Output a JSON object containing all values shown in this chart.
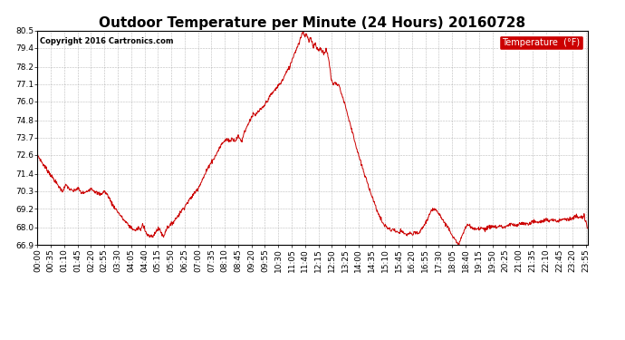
{
  "title": "Outdoor Temperature per Minute (24 Hours) 20160728",
  "copyright_text": "Copyright 2016 Cartronics.com",
  "legend_label": "Temperature  (°F)",
  "line_color": "#cc0000",
  "background_color": "#ffffff",
  "grid_color": "#aaaaaa",
  "ylim": [
    66.9,
    80.5
  ],
  "yticks": [
    66.9,
    68.0,
    69.2,
    70.3,
    71.4,
    72.6,
    73.7,
    74.8,
    76.0,
    77.1,
    78.2,
    79.4,
    80.5
  ],
  "num_minutes": 1440,
  "x_tick_interval": 35,
  "title_fontsize": 11,
  "axis_fontsize": 6.5,
  "legend_bg": "#cc0000",
  "legend_text_color": "#ffffff",
  "waypoints": [
    [
      0,
      72.6
    ],
    [
      15,
      72.0
    ],
    [
      30,
      71.5
    ],
    [
      50,
      70.8
    ],
    [
      65,
      70.3
    ],
    [
      75,
      70.7
    ],
    [
      85,
      70.4
    ],
    [
      95,
      70.3
    ],
    [
      105,
      70.5
    ],
    [
      115,
      70.2
    ],
    [
      125,
      70.2
    ],
    [
      140,
      70.5
    ],
    [
      155,
      70.2
    ],
    [
      165,
      70.1
    ],
    [
      175,
      70.3
    ],
    [
      185,
      70.0
    ],
    [
      195,
      69.5
    ],
    [
      210,
      69.0
    ],
    [
      225,
      68.5
    ],
    [
      240,
      68.1
    ],
    [
      255,
      67.8
    ],
    [
      265,
      68.0
    ],
    [
      270,
      67.8
    ],
    [
      275,
      68.2
    ],
    [
      280,
      68.0
    ],
    [
      285,
      67.6
    ],
    [
      295,
      67.4
    ],
    [
      305,
      67.5
    ],
    [
      310,
      67.8
    ],
    [
      320,
      67.9
    ],
    [
      325,
      67.6
    ],
    [
      330,
      67.4
    ],
    [
      335,
      67.8
    ],
    [
      340,
      68.0
    ],
    [
      350,
      68.2
    ],
    [
      360,
      68.5
    ],
    [
      375,
      69.0
    ],
    [
      390,
      69.5
    ],
    [
      405,
      70.0
    ],
    [
      420,
      70.5
    ],
    [
      435,
      71.2
    ],
    [
      450,
      72.0
    ],
    [
      465,
      72.5
    ],
    [
      475,
      73.0
    ],
    [
      485,
      73.4
    ],
    [
      495,
      73.6
    ],
    [
      505,
      73.5
    ],
    [
      510,
      73.7
    ],
    [
      515,
      73.5
    ],
    [
      520,
      73.6
    ],
    [
      525,
      73.8
    ],
    [
      530,
      73.6
    ],
    [
      535,
      73.5
    ],
    [
      540,
      74.0
    ],
    [
      550,
      74.5
    ],
    [
      555,
      74.8
    ],
    [
      560,
      75.0
    ],
    [
      565,
      75.2
    ],
    [
      570,
      75.1
    ],
    [
      575,
      75.3
    ],
    [
      580,
      75.4
    ],
    [
      590,
      75.6
    ],
    [
      600,
      76.0
    ],
    [
      610,
      76.4
    ],
    [
      620,
      76.7
    ],
    [
      630,
      77.0
    ],
    [
      640,
      77.3
    ],
    [
      650,
      77.8
    ],
    [
      660,
      78.2
    ],
    [
      668,
      78.8
    ],
    [
      675,
      79.2
    ],
    [
      682,
      79.6
    ],
    [
      688,
      80.0
    ],
    [
      692,
      80.3
    ],
    [
      695,
      80.5
    ],
    [
      697,
      80.3
    ],
    [
      700,
      80.1
    ],
    [
      703,
      80.3
    ],
    [
      706,
      80.1
    ],
    [
      710,
      79.8
    ],
    [
      715,
      80.0
    ],
    [
      718,
      79.8
    ],
    [
      722,
      79.5
    ],
    [
      726,
      79.7
    ],
    [
      730,
      79.5
    ],
    [
      735,
      79.2
    ],
    [
      740,
      79.4
    ],
    [
      745,
      79.2
    ],
    [
      750,
      79.0
    ],
    [
      755,
      79.3
    ],
    [
      758,
      79.1
    ],
    [
      763,
      78.5
    ],
    [
      768,
      77.5
    ],
    [
      772,
      77.2
    ],
    [
      775,
      77.1
    ],
    [
      778,
      77.2
    ],
    [
      782,
      77.1
    ],
    [
      788,
      77.1
    ],
    [
      795,
      76.5
    ],
    [
      805,
      75.8
    ],
    [
      815,
      74.8
    ],
    [
      825,
      74.0
    ],
    [
      835,
      73.0
    ],
    [
      845,
      72.2
    ],
    [
      855,
      71.4
    ],
    [
      865,
      70.7
    ],
    [
      875,
      70.0
    ],
    [
      885,
      69.3
    ],
    [
      895,
      68.7
    ],
    [
      905,
      68.2
    ],
    [
      915,
      68.0
    ],
    [
      925,
      67.8
    ],
    [
      930,
      67.9
    ],
    [
      935,
      67.8
    ],
    [
      940,
      67.7
    ],
    [
      945,
      67.6
    ],
    [
      950,
      67.8
    ],
    [
      955,
      67.7
    ],
    [
      960,
      67.6
    ],
    [
      965,
      67.5
    ],
    [
      970,
      67.6
    ],
    [
      975,
      67.7
    ],
    [
      980,
      67.5
    ],
    [
      985,
      67.6
    ],
    [
      990,
      67.7
    ],
    [
      995,
      67.6
    ],
    [
      1000,
      67.7
    ],
    [
      1005,
      67.9
    ],
    [
      1010,
      68.1
    ],
    [
      1015,
      68.3
    ],
    [
      1020,
      68.5
    ],
    [
      1025,
      68.8
    ],
    [
      1030,
      69.0
    ],
    [
      1035,
      69.1
    ],
    [
      1040,
      69.2
    ],
    [
      1045,
      69.1
    ],
    [
      1050,
      68.9
    ],
    [
      1055,
      68.7
    ],
    [
      1060,
      68.5
    ],
    [
      1065,
      68.3
    ],
    [
      1070,
      68.1
    ],
    [
      1075,
      68.0
    ],
    [
      1080,
      67.8
    ],
    [
      1085,
      67.5
    ],
    [
      1090,
      67.3
    ],
    [
      1095,
      67.1
    ],
    [
      1100,
      66.9
    ],
    [
      1105,
      67.1
    ],
    [
      1110,
      67.4
    ],
    [
      1115,
      67.7
    ],
    [
      1120,
      68.0
    ],
    [
      1125,
      68.2
    ],
    [
      1130,
      68.1
    ],
    [
      1135,
      68.0
    ],
    [
      1140,
      67.9
    ],
    [
      1150,
      67.9
    ],
    [
      1160,
      68.0
    ],
    [
      1170,
      67.9
    ],
    [
      1180,
      68.0
    ],
    [
      1190,
      68.1
    ],
    [
      1200,
      68.0
    ],
    [
      1210,
      68.1
    ],
    [
      1220,
      68.0
    ],
    [
      1230,
      68.1
    ],
    [
      1240,
      68.2
    ],
    [
      1250,
      68.1
    ],
    [
      1260,
      68.2
    ],
    [
      1270,
      68.3
    ],
    [
      1280,
      68.2
    ],
    [
      1290,
      68.3
    ],
    [
      1300,
      68.4
    ],
    [
      1310,
      68.3
    ],
    [
      1320,
      68.4
    ],
    [
      1330,
      68.5
    ],
    [
      1340,
      68.4
    ],
    [
      1350,
      68.5
    ],
    [
      1360,
      68.4
    ],
    [
      1370,
      68.5
    ],
    [
      1380,
      68.6
    ],
    [
      1390,
      68.5
    ],
    [
      1400,
      68.6
    ],
    [
      1410,
      68.7
    ],
    [
      1420,
      68.6
    ],
    [
      1430,
      68.7
    ],
    [
      1439,
      68.0
    ]
  ]
}
